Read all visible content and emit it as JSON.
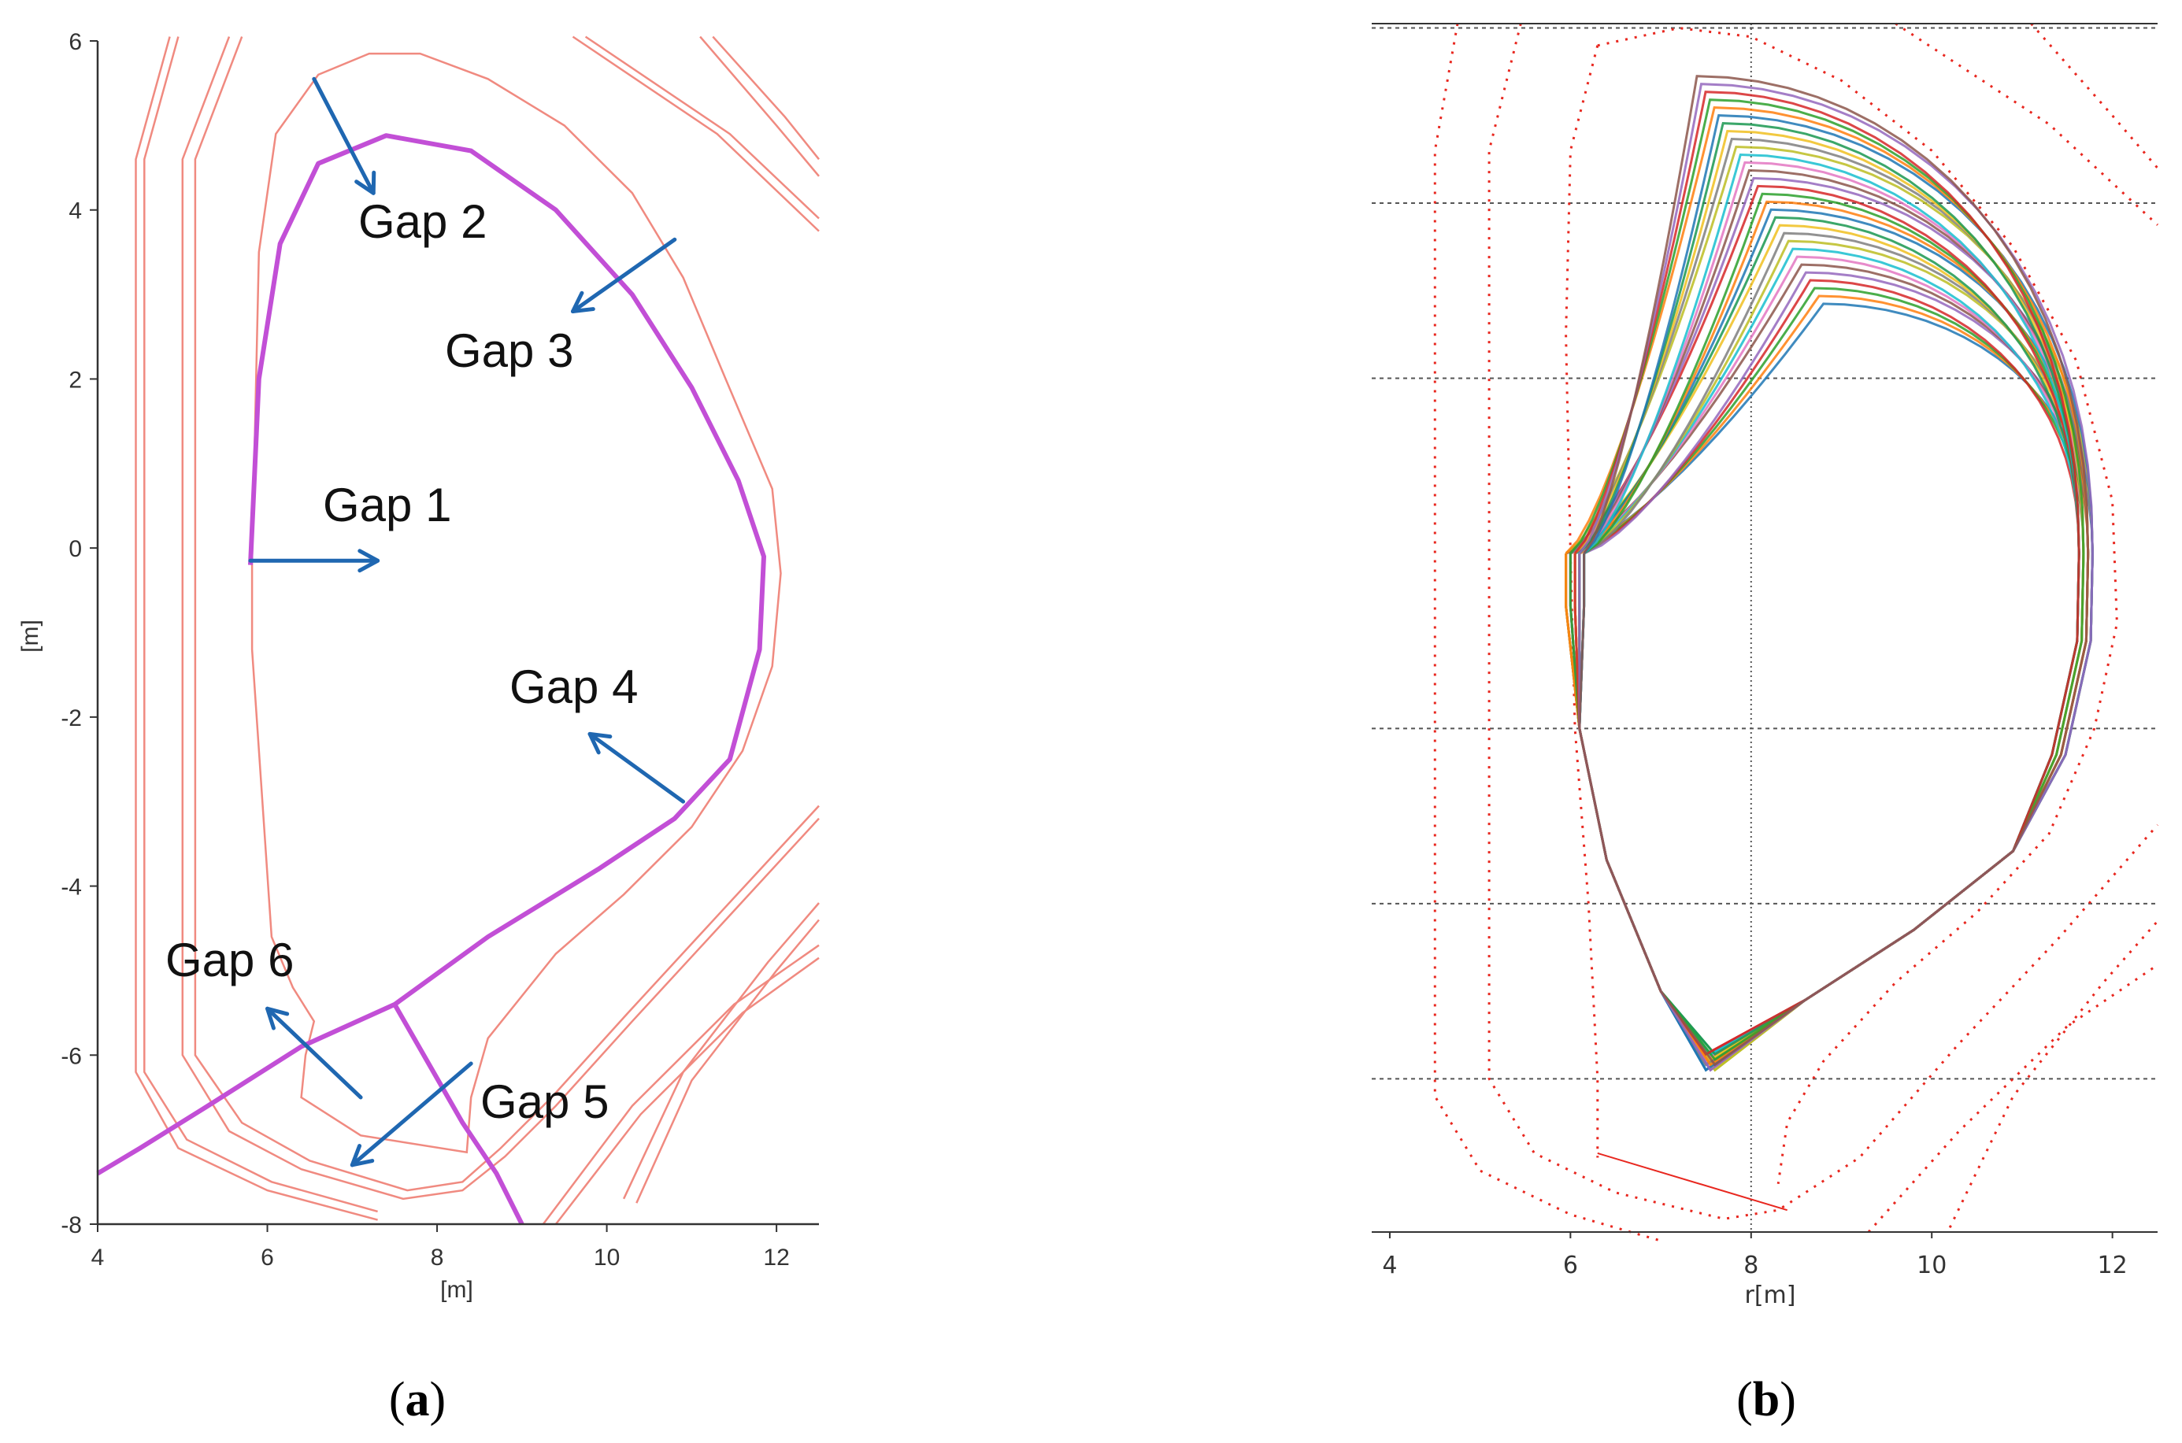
{
  "panel_a": {
    "xlabel": "[m]",
    "ylabel": "[m]",
    "xticks": [
      "4",
      "6",
      "8",
      "10",
      "12"
    ],
    "yticks": [
      "6",
      "4",
      "2",
      "0",
      "-2",
      "-4",
      "-6",
      "-8"
    ],
    "gaps": [
      {
        "label": "Gap 1"
      },
      {
        "label": "Gap 2"
      },
      {
        "label": "Gap 3"
      },
      {
        "label": "Gap 4"
      },
      {
        "label": "Gap 5"
      },
      {
        "label": "Gap 6"
      }
    ],
    "caption_letter": "a",
    "colors": {
      "wall": "#f08a80",
      "separatrix": "#c24fd6",
      "arrow": "#1f67b1"
    }
  },
  "panel_b": {
    "xlabel": "r[m]",
    "xticks": [
      "4",
      "6",
      "8",
      "10",
      "12"
    ],
    "caption_letter": "b",
    "colors": {
      "wall": "#e8271f",
      "grid": "#555555"
    }
  },
  "chart_data": [
    {
      "type": "line",
      "xlabel": "[m]",
      "ylabel": "[m]",
      "xlim": [
        4,
        12.5
      ],
      "ylim": [
        -8,
        6
      ],
      "series": [
        {
          "points": [
            [
              5.8,
              -0.2
            ],
            [
              5.9,
              2.0
            ],
            [
              6.15,
              3.6
            ],
            [
              6.6,
              4.55
            ],
            [
              7.4,
              4.88
            ],
            [
              8.4,
              4.7
            ],
            [
              9.4,
              4.0
            ],
            [
              10.3,
              3.0
            ],
            [
              11.0,
              1.9
            ],
            [
              11.55,
              0.8
            ],
            [
              11.85,
              -0.1
            ],
            [
              11.8,
              -1.2
            ],
            [
              11.45,
              -2.5
            ],
            [
              10.8,
              -3.2
            ],
            [
              9.9,
              -3.8
            ],
            [
              8.6,
              -4.6
            ],
            [
              7.5,
              -5.4
            ],
            [
              6.4,
              -5.9
            ],
            [
              5.3,
              -6.6
            ],
            [
              4.5,
              -7.1
            ],
            [
              4.0,
              -7.4
            ]
          ]
        },
        {
          "points": [
            [
              5.85,
              -0.2
            ],
            [
              6.0,
              1.5
            ],
            [
              6.35,
              3.2
            ],
            [
              6.8,
              4.2
            ],
            [
              7.1,
              4.6
            ],
            [
              7.3,
              4.8
            ],
            [
              7.6,
              5.1
            ],
            [
              8.0,
              5.25
            ],
            [
              8.3,
              5.1
            ],
            [
              8.6,
              4.9
            ],
            [
              9.0,
              6.1
            ]
          ]
        }
      ],
      "gaps": [
        {
          "label": "Gap 1",
          "from": [
            5.8,
            -0.15
          ],
          "to": [
            7.3,
            -0.15
          ]
        },
        {
          "label": "Gap 2",
          "from": [
            6.55,
            5.55
          ],
          "to": [
            7.25,
            4.2
          ]
        },
        {
          "label": "Gap 3",
          "from": [
            10.8,
            3.65
          ],
          "to": [
            9.6,
            2.8
          ]
        },
        {
          "label": "Gap 4",
          "from": [
            10.9,
            -3.0
          ],
          "to": [
            9.8,
            -2.2
          ]
        },
        {
          "label": "Gap 5",
          "from": [
            8.4,
            -6.1
          ],
          "to": [
            7.0,
            -7.3
          ]
        },
        {
          "label": "Gap 6",
          "from": [
            7.1,
            -6.5
          ],
          "to": [
            6.0,
            -5.45
          ]
        }
      ]
    },
    {
      "type": "scatter",
      "xlabel": "r[m]",
      "xlim": [
        3.8,
        12.5
      ],
      "ylim": [
        -7.75,
        6.05
      ],
      "gridlines_y": [
        6.0,
        4.0,
        2.0,
        -2.0,
        -4.0,
        -6.0
      ],
      "gridline_x": 8,
      "boundary_curves": 30,
      "boundary_r_range": [
        5.95,
        11.8
      ],
      "boundary_z_range": [
        -5.9,
        5.5
      ]
    }
  ]
}
